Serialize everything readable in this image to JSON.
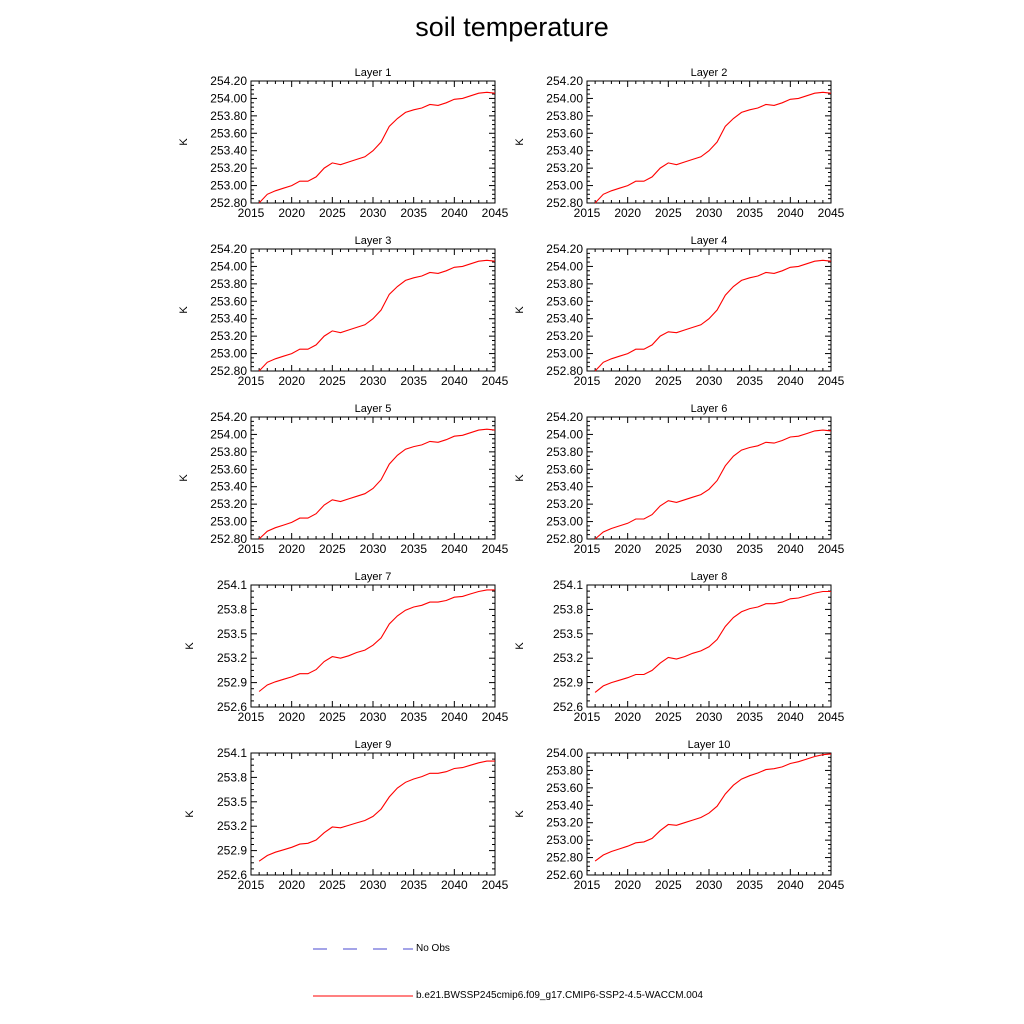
{
  "title": "soil temperature",
  "colors": {
    "model": "#ff0000",
    "obs": "#4a4ad0",
    "axis": "#000000"
  },
  "legend": {
    "obs_label": "No Obs",
    "model_label": "b.e21.BWSSP245cmip6.f09_g17.CMIP6-SSP2-4.5-WACCM.004"
  },
  "chart_data": [
    {
      "type": "line",
      "title": "Layer 1",
      "ylabel": "K",
      "xlim": [
        2015,
        2045
      ],
      "ylim": [
        252.8,
        254.2
      ],
      "xticks": [
        2015,
        2020,
        2025,
        2030,
        2035,
        2040,
        2045
      ],
      "yticks": [
        "252.80",
        "253.00",
        "253.20",
        "253.40",
        "253.60",
        "253.80",
        "254.00",
        "254.20"
      ],
      "x": [
        2016,
        2017,
        2018,
        2019,
        2020,
        2021,
        2022,
        2023,
        2024,
        2025,
        2026,
        2027,
        2028,
        2029,
        2030,
        2031,
        2032,
        2033,
        2034,
        2035,
        2036,
        2037,
        2038,
        2039,
        2040,
        2041,
        2042,
        2043,
        2044,
        2045
      ],
      "values": [
        252.8,
        252.9,
        252.94,
        252.97,
        253.0,
        253.05,
        253.05,
        253.1,
        253.2,
        253.26,
        253.24,
        253.27,
        253.3,
        253.33,
        253.4,
        253.5,
        253.68,
        253.77,
        253.84,
        253.87,
        253.89,
        253.93,
        253.92,
        253.95,
        253.99,
        254.0,
        254.03,
        254.06,
        254.07,
        254.06
      ]
    },
    {
      "type": "line",
      "title": "Layer 2",
      "ylabel": "K",
      "xlim": [
        2015,
        2045
      ],
      "ylim": [
        252.8,
        254.2
      ],
      "xticks": [
        2015,
        2020,
        2025,
        2030,
        2035,
        2040,
        2045
      ],
      "yticks": [
        "252.80",
        "253.00",
        "253.20",
        "253.40",
        "253.60",
        "253.80",
        "254.00",
        "254.20"
      ],
      "x": [
        2016,
        2017,
        2018,
        2019,
        2020,
        2021,
        2022,
        2023,
        2024,
        2025,
        2026,
        2027,
        2028,
        2029,
        2030,
        2031,
        2032,
        2033,
        2034,
        2035,
        2036,
        2037,
        2038,
        2039,
        2040,
        2041,
        2042,
        2043,
        2044,
        2045
      ],
      "values": [
        252.8,
        252.9,
        252.94,
        252.97,
        253.0,
        253.05,
        253.05,
        253.1,
        253.2,
        253.26,
        253.24,
        253.27,
        253.3,
        253.33,
        253.4,
        253.5,
        253.68,
        253.77,
        253.84,
        253.87,
        253.89,
        253.93,
        253.92,
        253.95,
        253.99,
        254.0,
        254.03,
        254.06,
        254.07,
        254.06
      ]
    },
    {
      "type": "line",
      "title": "Layer 3",
      "ylabel": "K",
      "xlim": [
        2015,
        2045
      ],
      "ylim": [
        252.8,
        254.2
      ],
      "xticks": [
        2015,
        2020,
        2025,
        2030,
        2035,
        2040,
        2045
      ],
      "yticks": [
        "252.80",
        "253.00",
        "253.20",
        "253.40",
        "253.60",
        "253.80",
        "254.00",
        "254.20"
      ],
      "x": [
        2016,
        2017,
        2018,
        2019,
        2020,
        2021,
        2022,
        2023,
        2024,
        2025,
        2026,
        2027,
        2028,
        2029,
        2030,
        2031,
        2032,
        2033,
        2034,
        2035,
        2036,
        2037,
        2038,
        2039,
        2040,
        2041,
        2042,
        2043,
        2044,
        2045
      ],
      "values": [
        252.8,
        252.9,
        252.94,
        252.97,
        253.0,
        253.05,
        253.05,
        253.1,
        253.2,
        253.26,
        253.24,
        253.27,
        253.3,
        253.33,
        253.4,
        253.5,
        253.68,
        253.77,
        253.84,
        253.87,
        253.89,
        253.93,
        253.92,
        253.95,
        253.99,
        254.0,
        254.03,
        254.06,
        254.07,
        254.06
      ]
    },
    {
      "type": "line",
      "title": "Layer 4",
      "ylabel": "K",
      "xlim": [
        2015,
        2045
      ],
      "ylim": [
        252.8,
        254.2
      ],
      "xticks": [
        2015,
        2020,
        2025,
        2030,
        2035,
        2040,
        2045
      ],
      "yticks": [
        "252.80",
        "253.00",
        "253.20",
        "253.40",
        "253.60",
        "253.80",
        "254.00",
        "254.20"
      ],
      "x": [
        2016,
        2017,
        2018,
        2019,
        2020,
        2021,
        2022,
        2023,
        2024,
        2025,
        2026,
        2027,
        2028,
        2029,
        2030,
        2031,
        2032,
        2033,
        2034,
        2035,
        2036,
        2037,
        2038,
        2039,
        2040,
        2041,
        2042,
        2043,
        2044,
        2045
      ],
      "values": [
        252.8,
        252.9,
        252.94,
        252.97,
        253.0,
        253.05,
        253.05,
        253.1,
        253.2,
        253.25,
        253.24,
        253.27,
        253.3,
        253.33,
        253.4,
        253.5,
        253.67,
        253.77,
        253.84,
        253.87,
        253.89,
        253.93,
        253.92,
        253.95,
        253.99,
        254.0,
        254.03,
        254.06,
        254.07,
        254.06
      ]
    },
    {
      "type": "line",
      "title": "Layer 5",
      "ylabel": "K",
      "xlim": [
        2015,
        2045
      ],
      "ylim": [
        252.8,
        254.2
      ],
      "xticks": [
        2015,
        2020,
        2025,
        2030,
        2035,
        2040,
        2045
      ],
      "yticks": [
        "252.80",
        "253.00",
        "253.20",
        "253.40",
        "253.60",
        "253.80",
        "254.00",
        "254.20"
      ],
      "x": [
        2016,
        2017,
        2018,
        2019,
        2020,
        2021,
        2022,
        2023,
        2024,
        2025,
        2026,
        2027,
        2028,
        2029,
        2030,
        2031,
        2032,
        2033,
        2034,
        2035,
        2036,
        2037,
        2038,
        2039,
        2040,
        2041,
        2042,
        2043,
        2044,
        2045
      ],
      "values": [
        252.8,
        252.89,
        252.93,
        252.96,
        252.99,
        253.04,
        253.04,
        253.09,
        253.19,
        253.25,
        253.23,
        253.26,
        253.29,
        253.32,
        253.38,
        253.48,
        253.66,
        253.76,
        253.83,
        253.86,
        253.88,
        253.92,
        253.91,
        253.94,
        253.98,
        253.99,
        254.02,
        254.05,
        254.06,
        254.05
      ]
    },
    {
      "type": "line",
      "title": "Layer 6",
      "ylabel": "K",
      "xlim": [
        2015,
        2045
      ],
      "ylim": [
        252.8,
        254.2
      ],
      "xticks": [
        2015,
        2020,
        2025,
        2030,
        2035,
        2040,
        2045
      ],
      "yticks": [
        "252.80",
        "253.00",
        "253.20",
        "253.40",
        "253.60",
        "253.80",
        "254.00",
        "254.20"
      ],
      "x": [
        2016,
        2017,
        2018,
        2019,
        2020,
        2021,
        2022,
        2023,
        2024,
        2025,
        2026,
        2027,
        2028,
        2029,
        2030,
        2031,
        2032,
        2033,
        2034,
        2035,
        2036,
        2037,
        2038,
        2039,
        2040,
        2041,
        2042,
        2043,
        2044,
        2045
      ],
      "values": [
        252.8,
        252.88,
        252.92,
        252.95,
        252.98,
        253.03,
        253.03,
        253.08,
        253.18,
        253.24,
        253.22,
        253.25,
        253.28,
        253.31,
        253.37,
        253.47,
        253.64,
        253.75,
        253.82,
        253.85,
        253.87,
        253.91,
        253.9,
        253.93,
        253.97,
        253.98,
        254.01,
        254.04,
        254.05,
        254.04
      ]
    },
    {
      "type": "line",
      "title": "Layer 7",
      "ylabel": "K",
      "xlim": [
        2015,
        2045
      ],
      "ylim": [
        252.6,
        254.1
      ],
      "xticks": [
        2015,
        2020,
        2025,
        2030,
        2035,
        2040,
        2045
      ],
      "yticks": [
        "252.6",
        "252.9",
        "253.2",
        "253.5",
        "253.8",
        "254.1"
      ],
      "x": [
        2016,
        2017,
        2018,
        2019,
        2020,
        2021,
        2022,
        2023,
        2024,
        2025,
        2026,
        2027,
        2028,
        2029,
        2030,
        2031,
        2032,
        2033,
        2034,
        2035,
        2036,
        2037,
        2038,
        2039,
        2040,
        2041,
        2042,
        2043,
        2044,
        2045
      ],
      "values": [
        252.79,
        252.87,
        252.91,
        252.94,
        252.97,
        253.01,
        253.01,
        253.06,
        253.16,
        253.22,
        253.2,
        253.23,
        253.27,
        253.3,
        253.36,
        253.45,
        253.62,
        253.72,
        253.79,
        253.83,
        253.85,
        253.89,
        253.89,
        253.91,
        253.95,
        253.96,
        253.99,
        254.02,
        254.04,
        254.04
      ]
    },
    {
      "type": "line",
      "title": "Layer 8",
      "ylabel": "K",
      "xlim": [
        2015,
        2045
      ],
      "ylim": [
        252.6,
        254.1
      ],
      "xticks": [
        2015,
        2020,
        2025,
        2030,
        2035,
        2040,
        2045
      ],
      "yticks": [
        "252.6",
        "252.9",
        "253.2",
        "253.5",
        "253.8",
        "254.1"
      ],
      "x": [
        2016,
        2017,
        2018,
        2019,
        2020,
        2021,
        2022,
        2023,
        2024,
        2025,
        2026,
        2027,
        2028,
        2029,
        2030,
        2031,
        2032,
        2033,
        2034,
        2035,
        2036,
        2037,
        2038,
        2039,
        2040,
        2041,
        2042,
        2043,
        2044,
        2045
      ],
      "values": [
        252.78,
        252.86,
        252.9,
        252.93,
        252.96,
        253.0,
        253.0,
        253.05,
        253.14,
        253.21,
        253.19,
        253.22,
        253.26,
        253.29,
        253.34,
        253.43,
        253.59,
        253.7,
        253.77,
        253.81,
        253.83,
        253.87,
        253.87,
        253.89,
        253.93,
        253.94,
        253.97,
        254.0,
        254.02,
        254.02
      ]
    },
    {
      "type": "line",
      "title": "Layer 9",
      "ylabel": "K",
      "xlim": [
        2015,
        2045
      ],
      "ylim": [
        252.6,
        254.1
      ],
      "xticks": [
        2015,
        2020,
        2025,
        2030,
        2035,
        2040,
        2045
      ],
      "yticks": [
        "252.6",
        "252.9",
        "253.2",
        "253.5",
        "253.8",
        "254.1"
      ],
      "x": [
        2016,
        2017,
        2018,
        2019,
        2020,
        2021,
        2022,
        2023,
        2024,
        2025,
        2026,
        2027,
        2028,
        2029,
        2030,
        2031,
        2032,
        2033,
        2034,
        2035,
        2036,
        2037,
        2038,
        2039,
        2040,
        2041,
        2042,
        2043,
        2044,
        2045
      ],
      "values": [
        252.77,
        252.84,
        252.88,
        252.91,
        252.94,
        252.98,
        252.99,
        253.03,
        253.12,
        253.19,
        253.18,
        253.21,
        253.24,
        253.27,
        253.32,
        253.41,
        253.56,
        253.67,
        253.74,
        253.78,
        253.81,
        253.85,
        253.85,
        253.87,
        253.91,
        253.92,
        253.95,
        253.98,
        254.0,
        254.0
      ]
    },
    {
      "type": "line",
      "title": "Layer 10",
      "ylabel": "K",
      "xlim": [
        2015,
        2045
      ],
      "ylim": [
        252.6,
        254.0
      ],
      "xticks": [
        2015,
        2020,
        2025,
        2030,
        2035,
        2040,
        2045
      ],
      "yticks": [
        "252.60",
        "252.80",
        "253.00",
        "253.20",
        "253.40",
        "253.60",
        "253.80",
        "254.00"
      ],
      "x": [
        2016,
        2017,
        2018,
        2019,
        2020,
        2021,
        2022,
        2023,
        2024,
        2025,
        2026,
        2027,
        2028,
        2029,
        2030,
        2031,
        2032,
        2033,
        2034,
        2035,
        2036,
        2037,
        2038,
        2039,
        2040,
        2041,
        2042,
        2043,
        2044,
        2045
      ],
      "values": [
        252.76,
        252.83,
        252.87,
        252.9,
        252.93,
        252.97,
        252.98,
        253.02,
        253.11,
        253.18,
        253.17,
        253.2,
        253.23,
        253.26,
        253.31,
        253.39,
        253.53,
        253.63,
        253.7,
        253.74,
        253.77,
        253.81,
        253.82,
        253.84,
        253.88,
        253.9,
        253.93,
        253.96,
        253.98,
        253.99
      ]
    }
  ]
}
